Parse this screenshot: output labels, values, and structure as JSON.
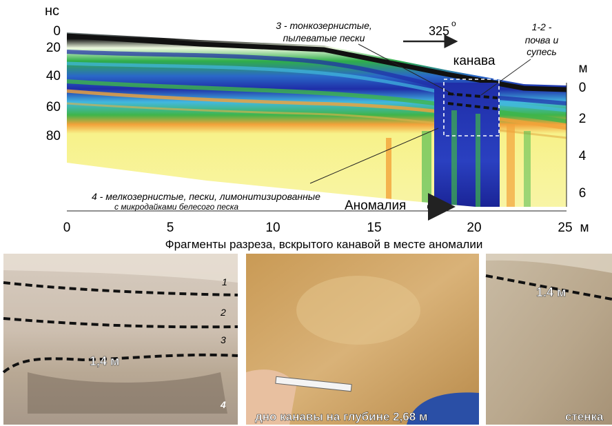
{
  "radargram": {
    "y_axis_unit": "нс",
    "y_ticks": [
      "0",
      "20",
      "40",
      "60",
      "80"
    ],
    "x_ticks": [
      "0",
      "5",
      "10",
      "15",
      "20",
      "25"
    ],
    "x_unit": "м",
    "depth_unit": "м",
    "depth_ticks": [
      "0",
      "2",
      "4",
      "6"
    ],
    "azimuth": "325",
    "degree_sign": "o",
    "trench_label": "канава",
    "annotation_3_line1": "3 - тонкозернистые,",
    "annotation_3_line2": "пылеватые пески",
    "annotation_12_line1": "1-2 -",
    "annotation_12_line2": "почва  и",
    "annotation_12_line3": "супесь",
    "annotation_4_line1": "4 -  мелкозернистые, пески, лимонитизированные",
    "annotation_4_line2": "с  микродайками белесого  песка",
    "anomaly_label": "Аномалия",
    "colors": {
      "sky": "#ffffff",
      "yellow": "#f7f28a",
      "orange": "#f2a23a",
      "green": "#3fb54a",
      "blue": "#1f2ea8",
      "black": "#111111"
    }
  },
  "photos_caption": "Фрагменты разреза, вскрытого канавой в месте аномалии",
  "photo_left": {
    "layer_labels": [
      "1",
      "2",
      "3",
      "4"
    ],
    "depth_label": "1,4 м"
  },
  "photo_middle": {
    "caption": "дно канавы на глубине 2,68 м"
  },
  "photo_right": {
    "depth_label": "1.4 м",
    "caption": "стенка"
  }
}
